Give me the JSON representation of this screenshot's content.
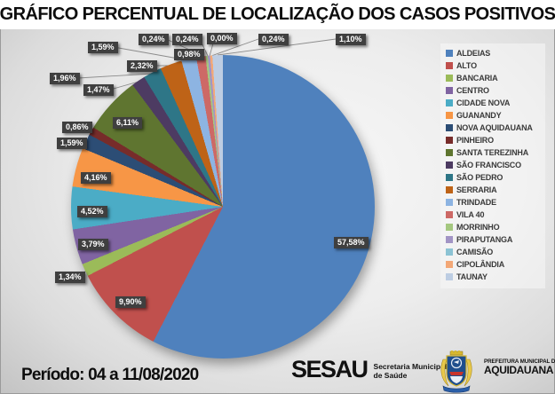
{
  "title": "GRÁFICO PERCENTUAL DE LOCALIZAÇÃO DOS CASOS POSITIVOS",
  "footer": {
    "period": "Período: 04 a 11/08/2020",
    "sesau": "SESAU",
    "sesau_sub1": "Secretaria Municipal",
    "sesau_sub2": "de Saúde",
    "prefeitura_line1": "PREFEITURA MUNICIPAL DE",
    "prefeitura_line2": "AQUIDAUANA"
  },
  "chart_data": {
    "type": "pie",
    "title": "GRÁFICO PERCENTUAL DE LOCALIZAÇÃO DOS CASOS POSITIVOS",
    "legend_position": "right",
    "start_angle_deg": 0,
    "label_box_color": "#3f3f3f",
    "callout_line_color": "#8c8c8c",
    "slices": [
      {
        "name": "ALDEIAS",
        "value": 57.58,
        "label": "57,58%",
        "color": "#4F81BD",
        "label_pos": [
          376,
          267
        ]
      },
      {
        "name": "ALTO",
        "value": 9.9,
        "label": "9,90%",
        "color": "#C0504D",
        "label_pos": [
          130,
          334
        ]
      },
      {
        "name": "BANCARIA",
        "value": 1.34,
        "label": "1,34%",
        "color": "#9BBB59",
        "label_pos": [
          62,
          306
        ],
        "line": [
          93,
          312,
          97,
          304
        ]
      },
      {
        "name": "CENTRO",
        "value": 3.79,
        "label": "3,79%",
        "color": "#8064A2",
        "label_pos": [
          88,
          269
        ]
      },
      {
        "name": "CIDADE NOVA",
        "value": 4.52,
        "label": "4,52%",
        "color": "#4BACC6",
        "label_pos": [
          87,
          232
        ]
      },
      {
        "name": "GUANANDY",
        "value": 4.16,
        "label": "4,16%",
        "color": "#F79646",
        "label_pos": [
          91,
          194
        ]
      },
      {
        "name": "NOVA AQUIDAUANA",
        "value": 1.59,
        "label": "1,59%",
        "color": "#2C4D75",
        "label_pos": [
          64,
          155
        ],
        "line": [
          93,
          161,
          98,
          160
        ]
      },
      {
        "name": "PINHEIRO",
        "value": 0.86,
        "label": "0,86%",
        "color": "#772C2A",
        "label_pos": [
          70,
          137
        ],
        "line": [
          100,
          143,
          106,
          148
        ]
      },
      {
        "name": "SANTA TEREZINHA",
        "value": 6.11,
        "label": "6,11%",
        "color": "#5F7530",
        "label_pos": [
          127,
          132
        ]
      },
      {
        "name": "SÃO FRANCISCO",
        "value": 1.47,
        "label": "1,47%",
        "color": "#4D3B62",
        "label_pos": [
          94,
          95
        ],
        "line": [
          124,
          101,
          156,
          92
        ]
      },
      {
        "name": "SÃO PEDRO",
        "value": 1.96,
        "label": "1,96%",
        "color": "#2E7687",
        "label_pos": [
          56,
          82
        ],
        "line": [
          88,
          88,
          171,
          83
        ]
      },
      {
        "name": "SERRARIA",
        "value": 2.32,
        "label": "2,32%",
        "color": "#BE6317",
        "label_pos": [
          143,
          68
        ],
        "line": [
          174,
          74,
          193,
          74
        ]
      },
      {
        "name": "TRINDADE",
        "value": 1.59,
        "label": "1,59%",
        "color": "#8DB4E2",
        "label_pos": [
          99,
          47
        ],
        "line": [
          128,
          53,
          212,
          68
        ]
      },
      {
        "name": "VILA 40",
        "value": 0.98,
        "label": "0,98%",
        "color": "#CD6966",
        "label_pos": [
          196,
          55
        ],
        "line": [
          222,
          67,
          227,
          65
        ]
      },
      {
        "name": "MORRINHO",
        "value": 0.24,
        "label": "0,24%",
        "color": "#A5C880",
        "label_pos": [
          156,
          38
        ],
        "line": [
          187,
          44,
          231,
          64
        ]
      },
      {
        "name": "PIRAPUTANGA",
        "value": 0.24,
        "label": "0,24%",
        "color": "#A294C5",
        "label_pos": [
          194,
          38
        ],
        "line": [
          225,
          44,
          234,
          63
        ]
      },
      {
        "name": "CAMISÃO",
        "value": 0.0,
        "label": "0,00%",
        "color": "#8CC3D4",
        "label_pos": [
          233,
          37
        ],
        "line": [
          240,
          49,
          236,
          63
        ]
      },
      {
        "name": "CIPOLÂNDIA",
        "value": 0.24,
        "label": "0,24%",
        "color": "#F3A877",
        "label_pos": [
          291,
          38
        ],
        "line": [
          291,
          44,
          238,
          63
        ]
      },
      {
        "name": "TAUNAY",
        "value": 1.1,
        "label": "1,10%",
        "color": "#BDCDE3",
        "label_pos": [
          378,
          38
        ],
        "line": [
          378,
          44,
          245,
          62
        ]
      }
    ]
  }
}
